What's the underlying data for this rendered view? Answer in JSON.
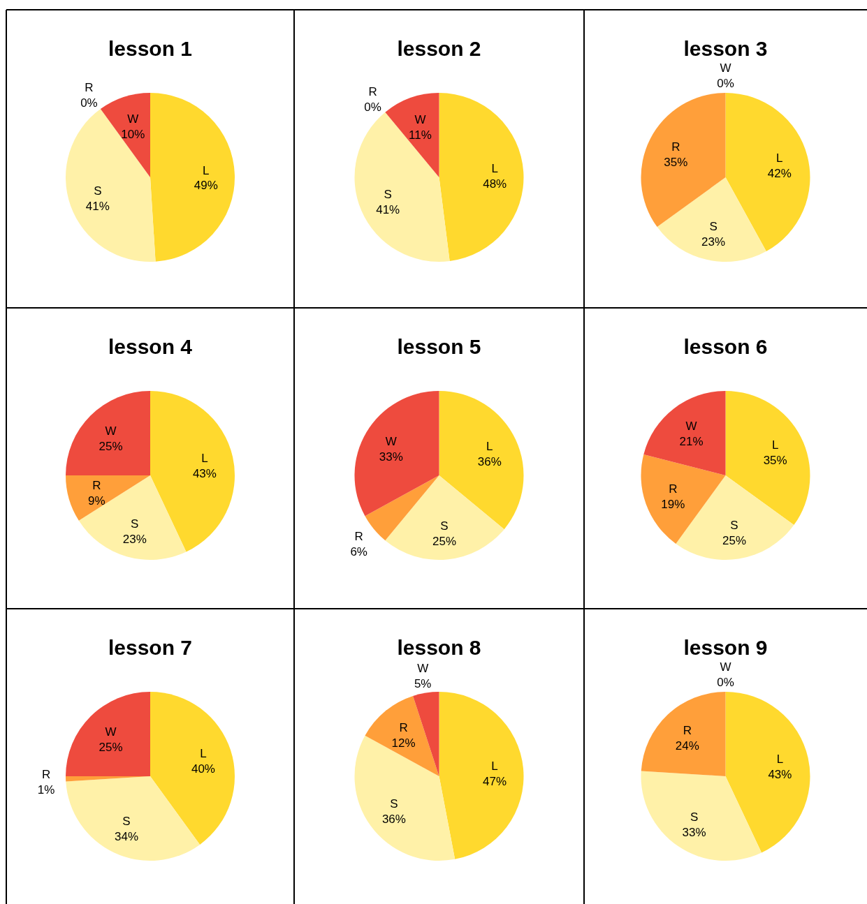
{
  "chart_data": [
    {
      "type": "pie",
      "title": "lesson 1",
      "categories": [
        "L",
        "S",
        "R",
        "W"
      ],
      "values": [
        49,
        41,
        0,
        10
      ],
      "value_labels": [
        "49%",
        "41%",
        "0%",
        "10%"
      ],
      "colors": [
        "#ffd92e",
        "#fff1a8",
        "#ff9f3a",
        "#ee4b3e"
      ]
    },
    {
      "type": "pie",
      "title": "lesson 2",
      "categories": [
        "L",
        "S",
        "R",
        "W"
      ],
      "values": [
        48,
        41,
        0,
        11
      ],
      "value_labels": [
        "48%",
        "41%",
        "0%",
        "11%"
      ],
      "colors": [
        "#ffd92e",
        "#fff1a8",
        "#ff9f3a",
        "#ee4b3e"
      ]
    },
    {
      "type": "pie",
      "title": "lesson 3",
      "categories": [
        "L",
        "S",
        "R",
        "W"
      ],
      "values": [
        42,
        23,
        35,
        0
      ],
      "value_labels": [
        "42%",
        "23%",
        "35%",
        "0%"
      ],
      "colors": [
        "#ffd92e",
        "#fff1a8",
        "#ff9f3a",
        "#ee4b3e"
      ]
    },
    {
      "type": "pie",
      "title": "lesson 4",
      "categories": [
        "L",
        "S",
        "R",
        "W"
      ],
      "values": [
        43,
        23,
        9,
        25
      ],
      "value_labels": [
        "43%",
        "23%",
        "9%",
        "25%"
      ],
      "colors": [
        "#ffd92e",
        "#fff1a8",
        "#ff9f3a",
        "#ee4b3e"
      ]
    },
    {
      "type": "pie",
      "title": "lesson 5",
      "categories": [
        "L",
        "S",
        "R",
        "W"
      ],
      "values": [
        36,
        25,
        6,
        33
      ],
      "value_labels": [
        "36%",
        "25%",
        "6%",
        "33%"
      ],
      "colors": [
        "#ffd92e",
        "#fff1a8",
        "#ff9f3a",
        "#ee4b3e"
      ]
    },
    {
      "type": "pie",
      "title": "lesson 6",
      "categories": [
        "L",
        "S",
        "R",
        "W"
      ],
      "values": [
        35,
        25,
        19,
        21
      ],
      "value_labels": [
        "35%",
        "25%",
        "19%",
        "21%"
      ],
      "colors": [
        "#ffd92e",
        "#fff1a8",
        "#ff9f3a",
        "#ee4b3e"
      ]
    },
    {
      "type": "pie",
      "title": "lesson 7",
      "categories": [
        "L",
        "S",
        "R",
        "W"
      ],
      "values": [
        40,
        34,
        1,
        25
      ],
      "value_labels": [
        "40%",
        "34%",
        "1%",
        "25%"
      ],
      "colors": [
        "#ffd92e",
        "#fff1a8",
        "#ff9f3a",
        "#ee4b3e"
      ]
    },
    {
      "type": "pie",
      "title": "lesson 8",
      "categories": [
        "L",
        "S",
        "R",
        "W"
      ],
      "values": [
        47,
        36,
        12,
        5
      ],
      "value_labels": [
        "47%",
        "36%",
        "12%",
        "5%"
      ],
      "colors": [
        "#ffd92e",
        "#fff1a8",
        "#ff9f3a",
        "#ee4b3e"
      ]
    },
    {
      "type": "pie",
      "title": "lesson 9",
      "categories": [
        "L",
        "S",
        "R",
        "W"
      ],
      "values": [
        43,
        33,
        24,
        0
      ],
      "value_labels": [
        "43%",
        "33%",
        "24%",
        "0%"
      ],
      "colors": [
        "#ffd92e",
        "#fff1a8",
        "#ff9f3a",
        "#ee4b3e"
      ]
    }
  ]
}
